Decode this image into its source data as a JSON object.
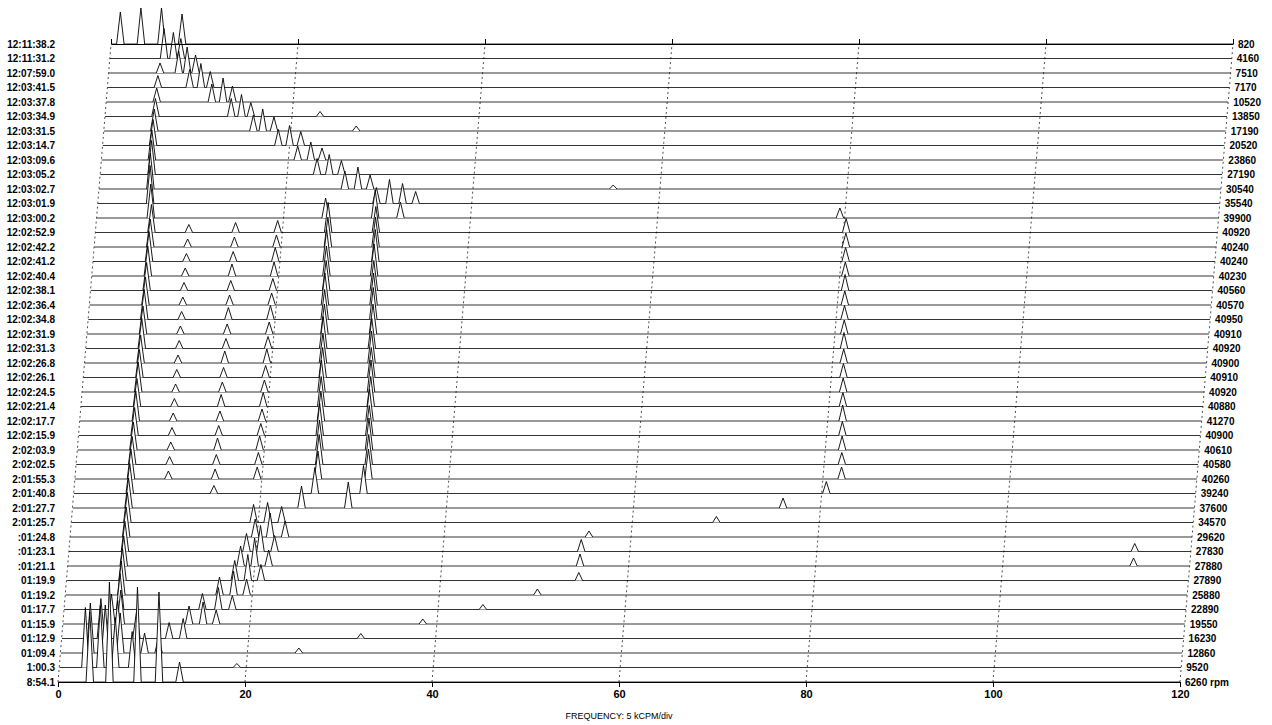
{
  "chart_data": {
    "type": "waterfall",
    "x_label": "FREQUENCY: 5 kCPM/div",
    "xlim": [
      0,
      120
    ],
    "xticks": [
      0,
      20,
      40,
      60,
      80,
      100,
      120
    ],
    "zlim": [
      0,
      100
    ],
    "grid": true,
    "tick_labels": "x",
    "traces": [
      {
        "time": "12:11:38.2",
        "rpm": 820,
        "x": [
          1.0,
          3.2,
          5.4,
          7.6
        ],
        "values": [
          32,
          36,
          36,
          30
        ]
      },
      {
        "time": "12:11:31.2",
        "rpm": 4160,
        "x": [
          5.8,
          6.8,
          7.6
        ],
        "values": [
          30,
          26,
          20
        ]
      },
      {
        "time": "12:07:59.0",
        "rpm": 7510,
        "x": [
          5.5,
          7.5,
          8.4,
          9.3
        ],
        "values": [
          10,
          22,
          26,
          18
        ]
      },
      {
        "time": "12:03:41.5",
        "rpm": 7170,
        "x": [
          5.4,
          8.8,
          10.0,
          11.0
        ],
        "values": [
          12,
          18,
          24,
          16
        ]
      },
      {
        "time": "12:03:37.8",
        "rpm": 10520,
        "x": [
          5.4,
          11.3,
          12.5,
          13.5
        ],
        "values": [
          14,
          18,
          24,
          16
        ]
      },
      {
        "time": "12:03:34.9",
        "rpm": 13850,
        "x": [
          5.4,
          13.5,
          14.6,
          15.6,
          23.0
        ],
        "values": [
          18,
          18,
          22,
          14,
          5
        ]
      },
      {
        "time": "12:03:31.5",
        "rpm": 17190,
        "x": [
          5.4,
          16.0,
          17.0,
          18.2,
          27.0
        ],
        "values": [
          22,
          16,
          22,
          14,
          5
        ]
      },
      {
        "time": "12:03:14.7",
        "rpm": 20520,
        "x": [
          5.4,
          18.8,
          20.0,
          21.2
        ],
        "values": [
          26,
          16,
          20,
          14
        ]
      },
      {
        "time": "12:03:09.6",
        "rpm": 23860,
        "x": [
          5.4,
          21.0,
          22.4,
          23.6
        ],
        "values": [
          30,
          14,
          18,
          12
        ]
      },
      {
        "time": "12:03:05.2",
        "rpm": 27190,
        "x": [
          5.5,
          23.2,
          24.5,
          25.8
        ],
        "values": [
          34,
          16,
          20,
          14
        ]
      },
      {
        "time": "12:03:02.7",
        "rpm": 30540,
        "x": [
          5.5,
          26.3,
          27.7,
          29.0,
          55.0
        ],
        "values": [
          36,
          18,
          22,
          14,
          4
        ]
      },
      {
        "time": "12:03:01.9",
        "rpm": 35540,
        "x": [
          5.6,
          29.8,
          31.2,
          32.6,
          34.0
        ],
        "values": [
          38,
          16,
          24,
          20,
          12
        ]
      },
      {
        "time": "12:03:00.2",
        "rpm": 39900,
        "x": [
          5.8,
          24.5,
          29.8,
          32.5,
          79.5
        ],
        "values": [
          34,
          20,
          28,
          16,
          10
        ]
      },
      {
        "time": "12:02:52.9",
        "rpm": 40920,
        "x": [
          6.0,
          10.0,
          15.0,
          19.5,
          24.9,
          30.0,
          80.3
        ],
        "values": [
          28,
          8,
          10,
          12,
          30,
          26,
          14
        ]
      },
      {
        "time": "12:02:42.2",
        "rpm": 40240,
        "x": [
          6.0,
          10.0,
          15.0,
          19.5,
          25.0,
          30.1,
          80.4
        ],
        "values": [
          28,
          8,
          10,
          12,
          30,
          30,
          14
        ]
      },
      {
        "time": "12:02:41.2",
        "rpm": 40240,
        "x": [
          6.0,
          10.0,
          15.0,
          19.5,
          25.0,
          30.2,
          80.5
        ],
        "values": [
          30,
          8,
          10,
          14,
          32,
          32,
          14
        ]
      },
      {
        "time": "12:02:40.4",
        "rpm": 40230,
        "x": [
          6.0,
          10.0,
          15.0,
          19.5,
          25.1,
          30.2,
          80.6
        ],
        "values": [
          30,
          8,
          12,
          14,
          30,
          32,
          14
        ]
      },
      {
        "time": "12:02:38.1",
        "rpm": 40560,
        "x": [
          6.0,
          10.0,
          15.0,
          19.5,
          25.2,
          30.3,
          80.7
        ],
        "values": [
          28,
          8,
          10,
          12,
          30,
          30,
          16
        ]
      },
      {
        "time": "12:02:36.4",
        "rpm": 40570,
        "x": [
          6.0,
          10.0,
          15.0,
          19.5,
          25.2,
          30.4,
          80.8
        ],
        "values": [
          28,
          8,
          10,
          12,
          32,
          32,
          14
        ]
      },
      {
        "time": "12:02:34.8",
        "rpm": 40950,
        "x": [
          6.0,
          10.0,
          15.0,
          19.5,
          25.3,
          30.5,
          80.9
        ],
        "values": [
          30,
          8,
          12,
          14,
          30,
          32,
          14
        ]
      },
      {
        "time": "12:02:31.9",
        "rpm": 40910,
        "x": [
          6.0,
          10.0,
          15.0,
          19.5,
          25.4,
          30.6,
          81.0
        ],
        "values": [
          28,
          8,
          10,
          12,
          30,
          30,
          14
        ]
      },
      {
        "time": "12:02:31.3",
        "rpm": 40920,
        "x": [
          6.0,
          10.0,
          15.0,
          19.5,
          25.4,
          30.6,
          81.1
        ],
        "values": [
          30,
          8,
          10,
          12,
          32,
          30,
          16
        ]
      },
      {
        "time": "12:02:26.8",
        "rpm": 40900,
        "x": [
          6.0,
          10.0,
          15.0,
          19.5,
          25.5,
          30.7,
          81.2
        ],
        "values": [
          28,
          8,
          12,
          14,
          30,
          32,
          14
        ]
      },
      {
        "time": "12:02:26.1",
        "rpm": 40910,
        "x": [
          6.0,
          10.0,
          15.0,
          19.5,
          25.6,
          30.8,
          81.3
        ],
        "values": [
          28,
          8,
          10,
          12,
          30,
          30,
          14
        ]
      },
      {
        "time": "12:02:24.5",
        "rpm": 40920,
        "x": [
          6.0,
          10.0,
          15.0,
          19.5,
          25.6,
          30.9,
          81.4
        ],
        "values": [
          30,
          8,
          10,
          12,
          32,
          32,
          14
        ]
      },
      {
        "time": "12:02:21.4",
        "rpm": 40880,
        "x": [
          6.0,
          10.0,
          15.0,
          19.5,
          25.7,
          31.0,
          81.5
        ],
        "values": [
          28,
          8,
          12,
          14,
          30,
          30,
          14
        ]
      },
      {
        "time": "12:02:17.7",
        "rpm": 41270,
        "x": [
          6.0,
          10.0,
          15.0,
          19.5,
          25.8,
          31.0,
          81.6
        ],
        "values": [
          30,
          8,
          10,
          12,
          30,
          32,
          16
        ]
      },
      {
        "time": "12:02:15.9",
        "rpm": 40900,
        "x": [
          6.0,
          10.0,
          15.0,
          19.5,
          25.8,
          31.1,
          81.7
        ],
        "values": [
          28,
          8,
          10,
          12,
          32,
          30,
          14
        ]
      },
      {
        "time": "2:02:03.9",
        "rpm": 40610,
        "x": [
          6.0,
          10.0,
          15.0,
          19.5,
          25.9,
          31.2,
          81.8
        ],
        "values": [
          28,
          8,
          12,
          14,
          30,
          32,
          14
        ]
      },
      {
        "time": "2:02:02.5",
        "rpm": 40580,
        "x": [
          6.0,
          10.0,
          15.0,
          19.5,
          26.0,
          31.3,
          81.9
        ],
        "values": [
          28,
          8,
          10,
          12,
          30,
          30,
          12
        ]
      },
      {
        "time": "2:01:55.3",
        "rpm": 40260,
        "x": [
          6.0,
          10.0,
          15.0,
          19.5,
          26.0,
          31.4,
          82.0
        ],
        "values": [
          30,
          8,
          10,
          12,
          28,
          30,
          12
        ]
      },
      {
        "time": "2:01:40.8",
        "rpm": 39240,
        "x": [
          6.0,
          15.0,
          25.8,
          31.0,
          80.5
        ],
        "values": [
          30,
          8,
          26,
          28,
          12
        ]
      },
      {
        "time": "2:01:27.7",
        "rpm": 37600,
        "x": [
          6.0,
          24.5,
          29.5,
          76.0
        ],
        "values": [
          30,
          22,
          26,
          10
        ]
      },
      {
        "time": "2:01:25.7",
        "rpm": 34570,
        "x": [
          6.0,
          19.5,
          21.0,
          22.5,
          69.0
        ],
        "values": [
          30,
          18,
          20,
          16,
          6
        ]
      },
      {
        "time": ":01:24.8",
        "rpm": 29620,
        "x": [
          6.0,
          19.8,
          21.4,
          23.0,
          55.5
        ],
        "values": [
          30,
          18,
          24,
          16,
          6
        ]
      },
      {
        "time": ":01:23.1",
        "rpm": 27830,
        "x": [
          6.0,
          19.0,
          20.5,
          22.0,
          54.8,
          114.0
        ],
        "values": [
          30,
          18,
          26,
          16,
          12,
          8
        ]
      },
      {
        "time": ":01:21.1",
        "rpm": 27880,
        "x": [
          6.0,
          18.5,
          20.0,
          21.5,
          54.8,
          114.0
        ],
        "values": [
          30,
          20,
          28,
          16,
          12,
          8
        ]
      },
      {
        "time": "01:19.9",
        "rpm": 27890,
        "x": [
          6.0,
          18.0,
          19.4,
          20.8,
          54.8
        ],
        "values": [
          32,
          20,
          26,
          16,
          8
        ]
      },
      {
        "time": "01:19.2",
        "rpm": 25880,
        "x": [
          6.0,
          16.5,
          18.0,
          19.4,
          50.5
        ],
        "values": [
          34,
          18,
          24,
          16,
          6
        ]
      },
      {
        "time": "01:17.7",
        "rpm": 22890,
        "x": [
          6.0,
          14.8,
          16.5,
          18.0,
          44.8
        ],
        "values": [
          36,
          16,
          22,
          14,
          5
        ]
      },
      {
        "time": "01:15.9",
        "rpm": 19550,
        "x": [
          5.2,
          6.2,
          13.5,
          15.0,
          16.4,
          38.5
        ],
        "values": [
          30,
          34,
          18,
          22,
          14,
          5
        ]
      },
      {
        "time": "01:12.9",
        "rpm": 16230,
        "x": [
          4.2,
          6.0,
          8.0,
          11.5,
          13.0,
          32.0
        ],
        "values": [
          40,
          38,
          26,
          16,
          20,
          5
        ]
      },
      {
        "time": "01:09.4",
        "rpm": 12860,
        "x": [
          3.2,
          4.8,
          6.4,
          9.0,
          10.5,
          25.5
        ],
        "values": [
          50,
          48,
          40,
          20,
          16,
          5
        ]
      },
      {
        "time": "1:00.3",
        "rpm": 9520,
        "x": [
          2.8,
          4.4,
          6.0,
          7.8,
          19.0
        ],
        "values": [
          60,
          62,
          50,
          36,
          4
        ]
      },
      {
        "time": "8:54.1",
        "rpm": {
          "value": 6260,
          "label": "6260 rpm"
        },
        "x": [
          3.4,
          5.5,
          8.5,
          10.8,
          13.0
        ],
        "values": [
          70,
          100,
          95,
          90,
          20
        ]
      }
    ]
  }
}
